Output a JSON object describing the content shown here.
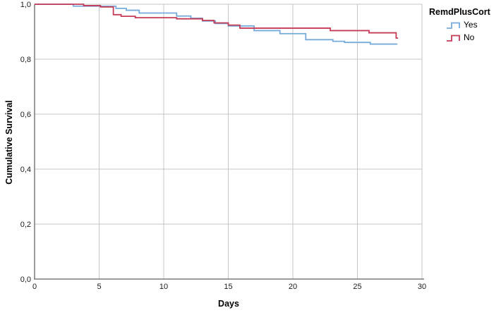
{
  "window": {
    "title": "Kaplan-Meier cumulative survival plot"
  },
  "legend": {
    "title": "RemdPlusCort",
    "items": [
      {
        "label": "Yes",
        "color": "#75ABDB"
      },
      {
        "label": "No",
        "color": "#C53B55"
      }
    ]
  },
  "colors": {
    "grid": "#c6c6c6",
    "axis": "#7a7a7a",
    "tick_text": "#1a1a1a",
    "background": "#ffffff"
  },
  "chart_data": {
    "type": "line",
    "subtype": "kaplan-meier-step",
    "title": "",
    "xlabel": "Days",
    "ylabel": "Cumulative Survival",
    "xlim": [
      0,
      30
    ],
    "ylim": [
      0.0,
      1.0
    ],
    "grid": true,
    "legend_position": "top-right",
    "x_ticks": [
      {
        "value": 0,
        "label": "0"
      },
      {
        "value": 5,
        "label": "5"
      },
      {
        "value": 10,
        "label": "10"
      },
      {
        "value": 15,
        "label": "15"
      },
      {
        "value": 20,
        "label": "20"
      },
      {
        "value": 25,
        "label": "25"
      },
      {
        "value": 30,
        "label": "30"
      }
    ],
    "y_ticks": [
      {
        "value": 0.0,
        "label": "0,0"
      },
      {
        "value": 0.2,
        "label": "0,2"
      },
      {
        "value": 0.4,
        "label": "0,4"
      },
      {
        "value": 0.6,
        "label": "0,6"
      },
      {
        "value": 0.8,
        "label": "0,8"
      },
      {
        "value": 1.0,
        "label": "1,0"
      }
    ],
    "series": [
      {
        "name": "Yes",
        "color": "#75ABDB",
        "end_day": 28.1,
        "points": [
          [
            0,
            1.0
          ],
          [
            3.0,
            0.993
          ],
          [
            6.3,
            0.985
          ],
          [
            7.1,
            0.978
          ],
          [
            8.1,
            0.968
          ],
          [
            11.0,
            0.957
          ],
          [
            12.1,
            0.949
          ],
          [
            13.0,
            0.939
          ],
          [
            14.0,
            0.93
          ],
          [
            15.0,
            0.921
          ],
          [
            17.0,
            0.904
          ],
          [
            19.0,
            0.893
          ],
          [
            21.0,
            0.871
          ],
          [
            23.1,
            0.865
          ],
          [
            24.0,
            0.861
          ],
          [
            26.0,
            0.855
          ]
        ]
      },
      {
        "name": "No",
        "color": "#C53B55",
        "end_day": 28.15,
        "points": [
          [
            0,
            1.0
          ],
          [
            3.8,
            0.995
          ],
          [
            5.1,
            0.99
          ],
          [
            6.1,
            0.962
          ],
          [
            6.7,
            0.956
          ],
          [
            7.8,
            0.951
          ],
          [
            11.0,
            0.947
          ],
          [
            13.0,
            0.941
          ],
          [
            13.9,
            0.932
          ],
          [
            15.0,
            0.924
          ],
          [
            15.9,
            0.913
          ],
          [
            22.9,
            0.904
          ],
          [
            25.9,
            0.896
          ],
          [
            28.0,
            0.877
          ]
        ]
      }
    ]
  }
}
